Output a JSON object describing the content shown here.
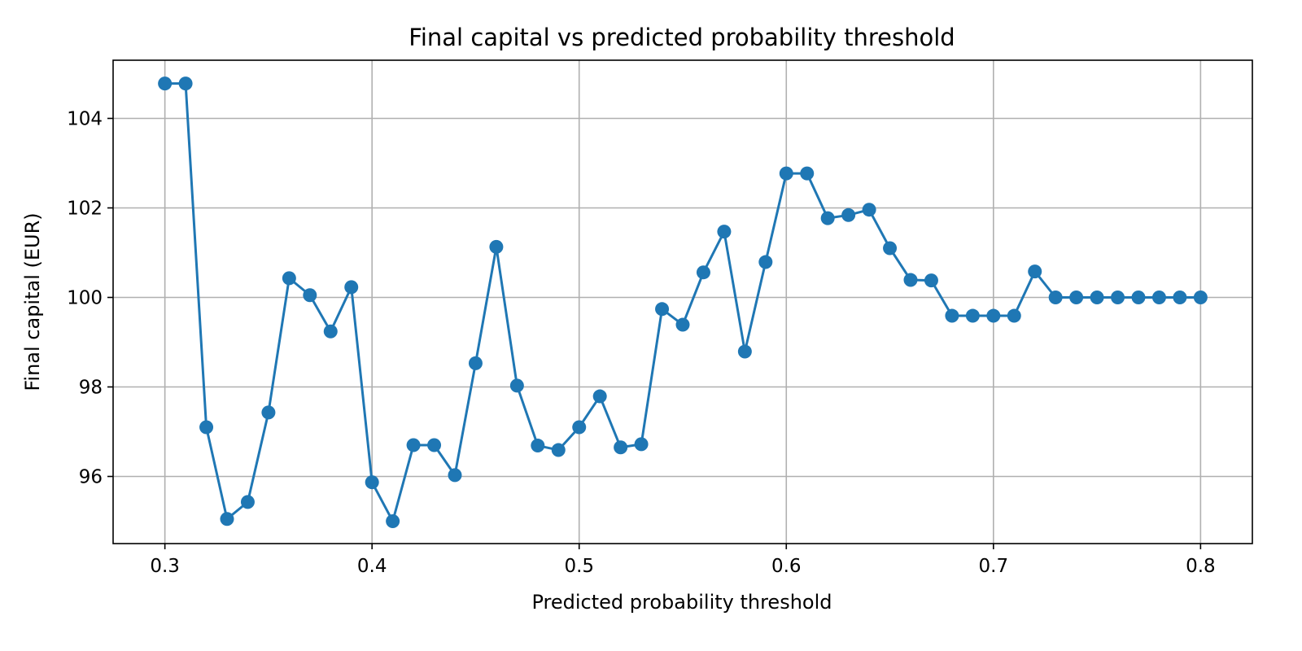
{
  "chart_data": {
    "type": "line",
    "title": "Final capital vs predicted probability threshold",
    "xlabel": "Predicted probability threshold",
    "ylabel": "Final capital (EUR)",
    "xlim": [
      0.275,
      0.825
    ],
    "ylim": [
      94.5,
      105.3
    ],
    "x_ticks": [
      0.3,
      0.4,
      0.5,
      0.6,
      0.7,
      0.8
    ],
    "x_tick_labels": [
      "0.3",
      "0.4",
      "0.5",
      "0.6",
      "0.7",
      "0.8"
    ],
    "y_ticks": [
      96,
      98,
      100,
      102,
      104
    ],
    "y_tick_labels": [
      "96",
      "98",
      "100",
      "102",
      "104"
    ],
    "grid": true,
    "legend": "none",
    "marker": "circle",
    "series": [
      {
        "color": "#1f77b4",
        "x": [
          0.3,
          0.31,
          0.32,
          0.33,
          0.34,
          0.35,
          0.36,
          0.37,
          0.38,
          0.39,
          0.4,
          0.41,
          0.42,
          0.43,
          0.44,
          0.45,
          0.46,
          0.47,
          0.48,
          0.49,
          0.5,
          0.51,
          0.52,
          0.53,
          0.54,
          0.55,
          0.56,
          0.57,
          0.58,
          0.59,
          0.6,
          0.61,
          0.62,
          0.63,
          0.64,
          0.65,
          0.66,
          0.67,
          0.68,
          0.69,
          0.7,
          0.71,
          0.72,
          0.73,
          0.74,
          0.75,
          0.76,
          0.77,
          0.78,
          0.79,
          0.8
        ],
        "y": [
          104.78,
          104.78,
          97.1,
          95.05,
          95.43,
          97.43,
          100.43,
          100.05,
          99.24,
          100.23,
          95.87,
          95.0,
          96.7,
          96.7,
          96.03,
          98.53,
          101.13,
          98.03,
          96.69,
          96.59,
          97.1,
          97.79,
          96.65,
          96.72,
          99.74,
          99.39,
          100.56,
          101.47,
          98.79,
          100.79,
          102.77,
          102.77,
          101.77,
          101.84,
          101.96,
          101.1,
          100.39,
          100.38,
          99.59,
          99.59,
          99.59,
          99.59,
          100.58,
          100.0,
          100.0,
          100.0,
          100.0,
          100.0,
          100.0,
          100.0,
          100.0
        ]
      }
    ]
  }
}
